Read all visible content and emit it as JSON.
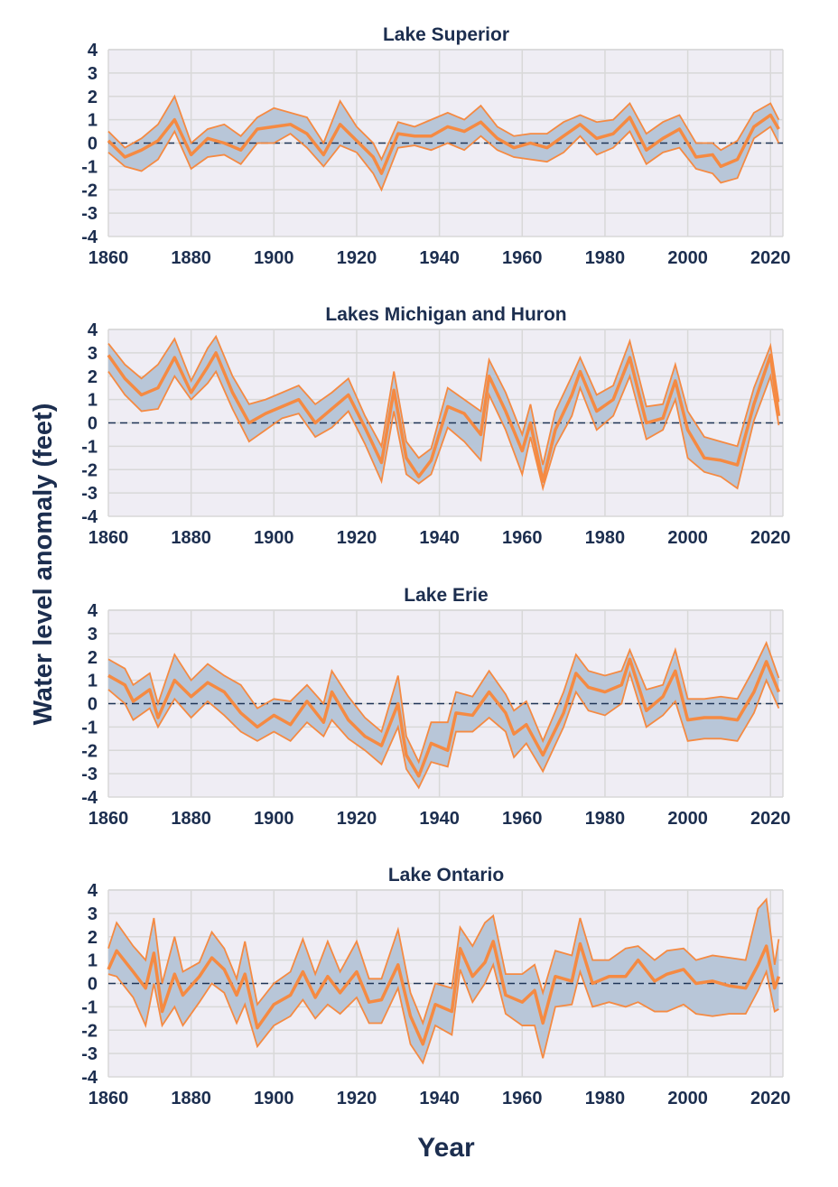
{
  "ylabel": "Water level anomaly (feet)",
  "xlabel": "Year",
  "colors": {
    "plot_bg": "#efedf4",
    "grid": "#d8d8d8",
    "band": "#b8c6d8",
    "line": "#f58a42",
    "zero_line": "#1f3557",
    "text": "#1c2e4f"
  },
  "chart_data": [
    {
      "type": "area",
      "title": "Lake Superior",
      "xlim": [
        1860,
        2023
      ],
      "ylim": [
        -4,
        4
      ],
      "grid": true,
      "xticks": [
        1860,
        1880,
        1900,
        1920,
        1940,
        1960,
        1980,
        2000,
        2020
      ],
      "yticks": [
        4,
        3,
        2,
        1,
        0,
        -1,
        -2,
        -3,
        -4
      ],
      "x": [
        1860,
        1864,
        1868,
        1872,
        1876,
        1880,
        1884,
        1888,
        1892,
        1896,
        1900,
        1904,
        1908,
        1912,
        1916,
        1920,
        1924,
        1926,
        1930,
        1934,
        1938,
        1942,
        1946,
        1950,
        1954,
        1958,
        1962,
        1966,
        1970,
        1974,
        1978,
        1982,
        1986,
        1990,
        1994,
        1998,
        2002,
        2006,
        2008,
        2012,
        2016,
        2020,
        2022
      ],
      "mean": [
        0.1,
        -0.6,
        -0.3,
        0.1,
        1.0,
        -0.5,
        0.2,
        0.0,
        -0.3,
        0.6,
        0.7,
        0.8,
        0.4,
        -0.5,
        0.8,
        0.1,
        -0.6,
        -1.3,
        0.4,
        0.3,
        0.3,
        0.7,
        0.5,
        0.9,
        0.2,
        -0.2,
        0.0,
        -0.2,
        0.3,
        0.8,
        0.2,
        0.4,
        1.1,
        -0.3,
        0.2,
        0.6,
        -0.6,
        -0.5,
        -1.0,
        -0.7,
        0.7,
        1.2,
        0.6
      ],
      "lower": [
        -0.4,
        -1.0,
        -1.2,
        -0.7,
        0.5,
        -1.1,
        -0.6,
        -0.5,
        -0.9,
        0.0,
        0.0,
        0.4,
        -0.2,
        -1.0,
        -0.1,
        -0.4,
        -1.3,
        -2.0,
        -0.2,
        -0.1,
        -0.3,
        0.0,
        -0.3,
        0.3,
        -0.3,
        -0.6,
        -0.7,
        -0.8,
        -0.4,
        0.3,
        -0.5,
        -0.2,
        0.5,
        -0.9,
        -0.4,
        -0.2,
        -1.1,
        -1.3,
        -1.7,
        -1.5,
        0.2,
        0.7,
        0.0
      ],
      "upper": [
        0.5,
        -0.2,
        0.2,
        0.8,
        2.0,
        0.0,
        0.6,
        0.8,
        0.3,
        1.1,
        1.5,
        1.3,
        1.1,
        0.0,
        1.8,
        0.7,
        0.0,
        -0.7,
        0.9,
        0.7,
        1.0,
        1.3,
        1.0,
        1.6,
        0.7,
        0.3,
        0.4,
        0.4,
        0.9,
        1.2,
        0.9,
        1.0,
        1.7,
        0.4,
        0.9,
        1.2,
        0.0,
        0.0,
        -0.3,
        0.1,
        1.3,
        1.7,
        1.0
      ]
    },
    {
      "type": "area",
      "title": "Lakes Michigan and Huron",
      "xlim": [
        1860,
        2023
      ],
      "ylim": [
        -4,
        4
      ],
      "grid": true,
      "xticks": [
        1860,
        1880,
        1900,
        1920,
        1940,
        1960,
        1980,
        2000,
        2020
      ],
      "yticks": [
        4,
        3,
        2,
        1,
        0,
        -1,
        -2,
        -3,
        -4
      ],
      "x": [
        1860,
        1864,
        1868,
        1872,
        1876,
        1880,
        1884,
        1886,
        1890,
        1894,
        1898,
        1902,
        1906,
        1910,
        1914,
        1918,
        1922,
        1926,
        1929,
        1932,
        1935,
        1938,
        1942,
        1946,
        1950,
        1952,
        1956,
        1960,
        1962,
        1965,
        1968,
        1972,
        1974,
        1978,
        1982,
        1986,
        1990,
        1994,
        1997,
        2000,
        2004,
        2008,
        2012,
        2016,
        2020,
        2022
      ],
      "mean": [
        2.9,
        1.9,
        1.2,
        1.5,
        2.8,
        1.3,
        2.4,
        3.0,
        1.3,
        0.0,
        0.4,
        0.7,
        1.0,
        0.0,
        0.6,
        1.2,
        -0.2,
        -1.7,
        1.4,
        -1.5,
        -2.3,
        -1.6,
        0.7,
        0.4,
        -0.5,
        2.0,
        0.5,
        -1.2,
        0.0,
        -2.5,
        -0.3,
        1.2,
        2.2,
        0.5,
        1.0,
        2.8,
        0.0,
        0.2,
        1.8,
        -0.3,
        -1.5,
        -1.6,
        -1.8,
        0.8,
        2.9,
        0.3
      ],
      "lower": [
        2.2,
        1.2,
        0.5,
        0.6,
        2.0,
        1.0,
        1.7,
        2.2,
        0.6,
        -0.8,
        -0.3,
        0.2,
        0.4,
        -0.6,
        -0.2,
        0.5,
        -0.9,
        -2.5,
        0.5,
        -2.2,
        -2.6,
        -2.2,
        -0.2,
        -0.8,
        -1.6,
        1.2,
        -0.3,
        -2.2,
        -0.6,
        -2.8,
        -1.0,
        0.3,
        1.5,
        -0.3,
        0.3,
        2.0,
        -0.7,
        -0.3,
        1.0,
        -1.5,
        -2.1,
        -2.3,
        -2.8,
        0.1,
        2.0,
        -0.1
      ],
      "upper": [
        3.4,
        2.5,
        1.9,
        2.5,
        3.6,
        1.8,
        3.2,
        3.7,
        2.0,
        0.8,
        1.0,
        1.3,
        1.6,
        0.8,
        1.3,
        1.9,
        0.3,
        -1.0,
        2.2,
        -0.8,
        -1.5,
        -1.1,
        1.5,
        1.0,
        0.5,
        2.7,
        1.3,
        -0.5,
        0.8,
        -1.8,
        0.5,
        2.0,
        2.8,
        1.2,
        1.6,
        3.5,
        0.7,
        0.8,
        2.5,
        0.5,
        -0.6,
        -0.8,
        -1.0,
        1.5,
        3.3,
        0.9
      ]
    },
    {
      "type": "area",
      "title": "Lake Erie",
      "xlim": [
        1860,
        2023
      ],
      "ylim": [
        -4,
        4
      ],
      "grid": true,
      "xticks": [
        1860,
        1880,
        1900,
        1920,
        1940,
        1960,
        1980,
        2000,
        2020
      ],
      "yticks": [
        4,
        3,
        2,
        1,
        0,
        -1,
        -2,
        -3,
        -4
      ],
      "x": [
        1860,
        1864,
        1866,
        1870,
        1872,
        1876,
        1880,
        1884,
        1888,
        1892,
        1896,
        1900,
        1904,
        1908,
        1912,
        1914,
        1918,
        1922,
        1926,
        1930,
        1932,
        1935,
        1938,
        1942,
        1944,
        1948,
        1952,
        1956,
        1958,
        1961,
        1965,
        1970,
        1973,
        1976,
        1980,
        1984,
        1986,
        1990,
        1994,
        1997,
        2000,
        2004,
        2008,
        2012,
        2016,
        2019,
        2022
      ],
      "mean": [
        1.2,
        0.8,
        0.1,
        0.6,
        -0.6,
        1.0,
        0.3,
        0.9,
        0.5,
        -0.4,
        -1.0,
        -0.5,
        -0.9,
        0.1,
        -0.8,
        0.5,
        -0.7,
        -1.4,
        -1.8,
        0.0,
        -2.2,
        -3.1,
        -1.7,
        -2.0,
        -0.4,
        -0.5,
        0.5,
        -0.4,
        -1.3,
        -0.9,
        -2.2,
        -0.4,
        1.3,
        0.7,
        0.5,
        0.8,
        1.9,
        -0.3,
        0.3,
        1.4,
        -0.7,
        -0.6,
        -0.6,
        -0.7,
        0.5,
        1.8,
        0.5
      ],
      "lower": [
        0.6,
        0.0,
        -0.7,
        -0.2,
        -1.0,
        0.2,
        -0.6,
        0.1,
        -0.5,
        -1.2,
        -1.6,
        -1.2,
        -1.6,
        -0.8,
        -1.4,
        -0.7,
        -1.5,
        -2.0,
        -2.6,
        -1.0,
        -2.8,
        -3.6,
        -2.5,
        -2.7,
        -1.2,
        -1.2,
        -0.6,
        -1.2,
        -2.3,
        -1.7,
        -2.9,
        -1.0,
        0.5,
        -0.3,
        -0.5,
        0.0,
        1.3,
        -1.0,
        -0.5,
        0.1,
        -1.6,
        -1.5,
        -1.5,
        -1.6,
        -0.4,
        1.0,
        -0.2
      ],
      "upper": [
        1.9,
        1.5,
        0.8,
        1.3,
        0.0,
        2.1,
        1.0,
        1.7,
        1.2,
        0.8,
        -0.2,
        0.2,
        0.1,
        0.8,
        0.0,
        1.4,
        0.3,
        -0.6,
        -1.2,
        1.2,
        -1.4,
        -2.5,
        -0.8,
        -0.8,
        0.5,
        0.3,
        1.4,
        0.4,
        -0.3,
        0.1,
        -1.6,
        0.5,
        2.1,
        1.4,
        1.2,
        1.4,
        2.3,
        0.6,
        0.8,
        2.3,
        0.2,
        0.2,
        0.3,
        0.2,
        1.5,
        2.6,
        1.1
      ]
    },
    {
      "type": "area",
      "title": "Lake Ontario",
      "xlim": [
        1860,
        2023
      ],
      "ylim": [
        -4,
        4
      ],
      "grid": true,
      "xticks": [
        1860,
        1880,
        1900,
        1920,
        1940,
        1960,
        1980,
        2000,
        2020
      ],
      "yticks": [
        4,
        3,
        2,
        1,
        0,
        -1,
        -2,
        -3,
        -4
      ],
      "x": [
        1860,
        1862,
        1866,
        1869,
        1871,
        1873,
        1876,
        1878,
        1882,
        1885,
        1888,
        1891,
        1893,
        1896,
        1900,
        1904,
        1907,
        1910,
        1913,
        1916,
        1920,
        1923,
        1926,
        1930,
        1933,
        1936,
        1939,
        1943,
        1945,
        1948,
        1951,
        1953,
        1956,
        1960,
        1963,
        1965,
        1968,
        1972,
        1974,
        1977,
        1981,
        1985,
        1988,
        1992,
        1995,
        1999,
        2002,
        2006,
        2010,
        2014,
        2017,
        2019,
        2021,
        2022
      ],
      "mean": [
        0.6,
        1.4,
        0.5,
        -0.2,
        1.3,
        -1.2,
        0.4,
        -0.5,
        0.3,
        1.1,
        0.6,
        -0.5,
        0.4,
        -1.9,
        -0.9,
        -0.5,
        0.5,
        -0.6,
        0.3,
        -0.4,
        0.5,
        -0.8,
        -0.7,
        0.8,
        -1.4,
        -2.6,
        -0.9,
        -1.2,
        1.5,
        0.3,
        0.9,
        1.8,
        -0.5,
        -0.8,
        -0.3,
        -1.7,
        0.3,
        0.1,
        1.7,
        0.0,
        0.3,
        0.3,
        1.0,
        0.1,
        0.4,
        0.6,
        0.0,
        0.1,
        -0.1,
        -0.2,
        0.8,
        1.6,
        -0.2,
        0.3
      ],
      "lower": [
        0.4,
        0.3,
        -0.6,
        -1.8,
        0.0,
        -1.8,
        -1.0,
        -1.8,
        -0.8,
        0.0,
        -0.4,
        -1.7,
        -0.9,
        -2.7,
        -1.8,
        -1.4,
        -0.7,
        -1.5,
        -0.9,
        -1.3,
        -0.6,
        -1.7,
        -1.7,
        -0.2,
        -2.6,
        -3.4,
        -1.8,
        -2.2,
        0.6,
        -0.8,
        0.0,
        0.8,
        -1.3,
        -1.8,
        -1.8,
        -3.2,
        -1.0,
        -0.9,
        0.5,
        -1.0,
        -0.8,
        -1.0,
        -0.8,
        -1.2,
        -1.2,
        -0.9,
        -1.3,
        -1.4,
        -1.3,
        -1.3,
        -0.3,
        0.5,
        -1.2,
        -1.1
      ],
      "upper": [
        1.5,
        2.6,
        1.6,
        1.0,
        2.8,
        0.0,
        2.0,
        0.5,
        0.9,
        2.2,
        1.5,
        0.2,
        1.8,
        -0.9,
        0.0,
        0.5,
        1.9,
        0.4,
        1.8,
        0.5,
        1.8,
        0.2,
        0.2,
        2.3,
        -0.4,
        -1.7,
        0.0,
        -0.2,
        2.4,
        1.6,
        2.6,
        2.9,
        0.4,
        0.4,
        0.8,
        -0.4,
        1.4,
        1.2,
        2.8,
        1.0,
        1.0,
        1.5,
        1.6,
        1.0,
        1.4,
        1.5,
        1.0,
        1.2,
        1.1,
        1.0,
        3.2,
        3.6,
        0.8,
        1.9
      ]
    }
  ]
}
